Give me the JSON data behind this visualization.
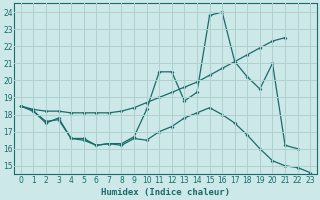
{
  "xlabel": "Humidex (Indice chaleur)",
  "ylabel": "",
  "bg_color": "#cce8e8",
  "grid_color": "#b0d0d0",
  "line_color": "#1a6b6b",
  "xlim": [
    -0.5,
    23.5
  ],
  "ylim": [
    14.5,
    24.5
  ],
  "xticks": [
    0,
    1,
    2,
    3,
    4,
    5,
    6,
    7,
    8,
    9,
    10,
    11,
    12,
    13,
    14,
    15,
    16,
    17,
    18,
    19,
    20,
    21,
    22,
    23
  ],
  "yticks": [
    15,
    16,
    17,
    18,
    19,
    20,
    21,
    22,
    23,
    24
  ],
  "line1_x": [
    0,
    1,
    2,
    3,
    4,
    5,
    6,
    7,
    8,
    9,
    10,
    11,
    12,
    13,
    14,
    15,
    16,
    17,
    18,
    19,
    20,
    21
  ],
  "line1_y": [
    18.5,
    18.3,
    18.2,
    18.2,
    18.1,
    18.1,
    18.1,
    18.1,
    18.2,
    18.4,
    18.7,
    19.0,
    19.3,
    19.6,
    19.9,
    20.3,
    20.7,
    21.1,
    21.5,
    21.9,
    22.3,
    22.5
  ],
  "line2_x": [
    0,
    1,
    2,
    3,
    4,
    5,
    6,
    7,
    8,
    9,
    10,
    11,
    12,
    13,
    14,
    15,
    16,
    17,
    18,
    19,
    20,
    21,
    22
  ],
  "line2_y": [
    18.5,
    18.2,
    17.5,
    17.8,
    16.6,
    16.6,
    16.2,
    16.3,
    16.3,
    16.7,
    18.3,
    20.5,
    20.5,
    18.8,
    19.3,
    23.8,
    24.0,
    21.1,
    20.2,
    19.5,
    21.0,
    16.2,
    16.0
  ],
  "line3_x": [
    0,
    1,
    2,
    3,
    4,
    5,
    6,
    7,
    8,
    9,
    10,
    11,
    12,
    13,
    14,
    15,
    16,
    17,
    18,
    19,
    20,
    21,
    22,
    23
  ],
  "line3_y": [
    18.5,
    18.2,
    17.6,
    17.7,
    16.6,
    16.5,
    16.2,
    16.3,
    16.2,
    16.6,
    16.5,
    17.0,
    17.3,
    17.8,
    18.1,
    18.4,
    18.0,
    17.5,
    16.8,
    16.0,
    15.3,
    15.0,
    14.9,
    14.6
  ]
}
